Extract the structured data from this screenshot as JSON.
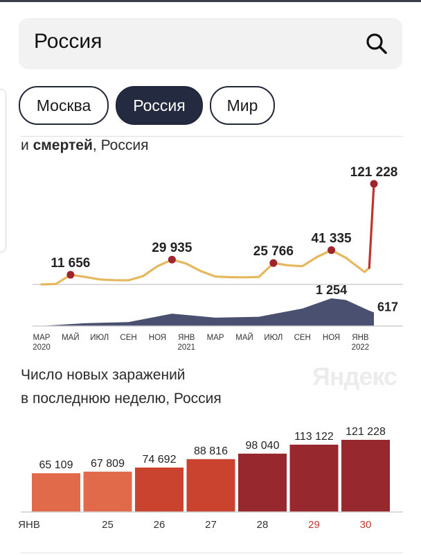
{
  "search": {
    "query": "Россия"
  },
  "regions": [
    {
      "label": "Москва",
      "active": false
    },
    {
      "label": "Россия",
      "active": true
    },
    {
      "label": "Мир",
      "active": false
    }
  ],
  "trend_chart": {
    "title_prefix": "и ",
    "title_bold": "смертей",
    "title_suffix": ", Россия"
  },
  "weekly": {
    "title_line1": "Число новых заражений",
    "title_line2": "в последнюю неделю, Россия",
    "watermark": "Яндекс"
  },
  "colors": {
    "cases_line": "#e6b75c",
    "peak_marker": "#a0242c",
    "surge_line": "#c0322c",
    "deaths_fill": "#4a5070",
    "bar_light": "#e06a4a",
    "bar_mid": "#c9432f",
    "bar_dark": "#96282e",
    "highlight_tick": "#c0392b"
  },
  "chart_data": [
    {
      "type": "line",
      "title": "и смертей, Россия",
      "series": [
        {
          "name": "",
          "x": [
            "2020-03",
            "2020-04",
            "2020-05",
            "2020-06",
            "2020-07",
            "2020-08",
            "2020-09",
            "2020-10",
            "2020-11",
            "2020-12",
            "2021-01",
            "2021-02",
            "2021-03",
            "2021-04",
            "2021-05",
            "2021-06",
            "2021-07",
            "2021-08",
            "2021-09",
            "2021-10",
            "2021-11",
            "2021-12",
            "2022-01-10",
            "2022-01-20",
            "2022-01-30"
          ],
          "values": [
            0,
            600,
            11656,
            9000,
            6000,
            5200,
            5000,
            10000,
            22000,
            29935,
            25000,
            16000,
            9500,
            8800,
            8500,
            9000,
            25766,
            23000,
            22000,
            33000,
            41335,
            32000,
            15000,
            20000,
            121228
          ],
          "labeled_points": [
            {
              "x": "2020-05",
              "value": 11656,
              "label": "11 656"
            },
            {
              "x": "2020-12",
              "value": 29935,
              "label": "29 935"
            },
            {
              "x": "2021-07",
              "value": 25766,
              "label": "25 766"
            },
            {
              "x": "2021-11",
              "value": 41335,
              "label": "41 335"
            },
            {
              "x": "2022-01-30",
              "value": 121228,
              "label": "121 228"
            }
          ]
        },
        {
          "name": "",
          "x": [
            "2020-03",
            "2020-06",
            "2020-09",
            "2020-12",
            "2021-03",
            "2021-06",
            "2021-09",
            "2021-11",
            "2021-12",
            "2022-01-20",
            "2022-01-30"
          ],
          "values": [
            5,
            130,
            180,
            560,
            380,
            420,
            790,
            1254,
            1180,
            700,
            617
          ],
          "labeled_points": [
            {
              "x": "2021-11",
              "value": 1254,
              "label": "1 254"
            },
            {
              "x": "2022-01-30",
              "value": 617,
              "label": "617"
            }
          ]
        }
      ],
      "x_ticks": [
        {
          "label": "МАР",
          "sub": "2020"
        },
        {
          "label": "МАЙ",
          "sub": ""
        },
        {
          "label": "ИЮЛ",
          "sub": ""
        },
        {
          "label": "СЕН",
          "sub": ""
        },
        {
          "label": "НОЯ",
          "sub": ""
        },
        {
          "label": "ЯНВ",
          "sub": "2021"
        },
        {
          "label": "МАР",
          "sub": ""
        },
        {
          "label": "МАЙ",
          "sub": ""
        },
        {
          "label": "ИЮЛ",
          "sub": ""
        },
        {
          "label": "СЕН",
          "sub": ""
        },
        {
          "label": "НОЯ",
          "sub": ""
        },
        {
          "label": "ЯНВ",
          "sub": "2022"
        }
      ],
      "grid": false,
      "legend": "none"
    },
    {
      "type": "bar",
      "title": "Число новых заражений в последнюю неделю, Россия",
      "categories": [
        "ЯНВ",
        "25",
        "26",
        "27",
        "28",
        "29",
        "30"
      ],
      "values": [
        65109,
        67809,
        74692,
        88816,
        98040,
        113122,
        121228
      ],
      "value_labels": [
        "65 109",
        "67 809",
        "74 692",
        "88 816",
        "98 040",
        "113 122",
        "121 228"
      ],
      "highlighted_categories": [
        "29",
        "30"
      ],
      "grid": false,
      "legend": "none"
    }
  ]
}
